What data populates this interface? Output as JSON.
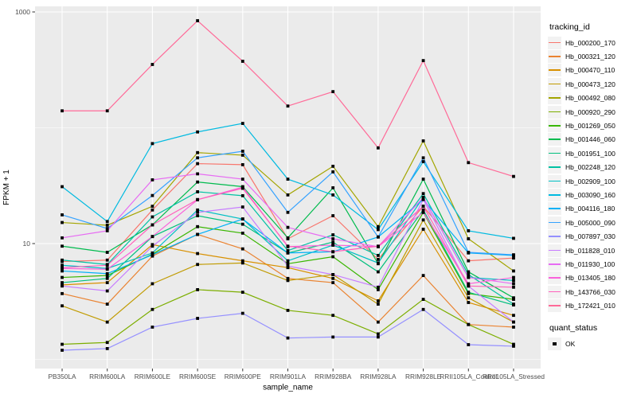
{
  "figure": {
    "background": "#FFFFFF",
    "panel_background": "#EBEBEB",
    "grid_color": "#FFFFFF",
    "tick_label_color": "#4D4D4D",
    "axis_title_color": "#000000",
    "point_color": "#000000"
  },
  "chart_data": {
    "type": "line",
    "title": "",
    "xlabel": "sample_name",
    "ylabel": "FPKM + 1",
    "y_scale": "log10",
    "y_tick_labels": [
      "10",
      "1000"
    ],
    "y_ticks": [
      10,
      1000
    ],
    "y_minor_gridlines": [
      1,
      100
    ],
    "ylim": [
      0.83,
      1120
    ],
    "grid": true,
    "legend_title": "tracking_id",
    "legend_position": "right",
    "point_marker": "black-square",
    "categories": [
      "PB350LA",
      "RRIM600LA",
      "RRIM600LE",
      "RRIM600SE",
      "RRIM600PE",
      "RRIM901LA",
      "RRIM928BA",
      "RRIM928LA",
      "RRIM928LE",
      "RRII105LA_Control",
      "RRII105LA_Stressed"
    ],
    "series": [
      {
        "name": "Hb_000200_170",
        "color": "#F8766D",
        "values": [
          7.0,
          7.2,
          19.5,
          49,
          48,
          11.0,
          17.4,
          7.3,
          21,
          7.1,
          7.5
        ]
      },
      {
        "name": "Hb_000321_120",
        "color": "#EA8331",
        "values": [
          3.7,
          3.0,
          7.8,
          12.0,
          9.0,
          5.0,
          4.6,
          2.1,
          5.3,
          2.0,
          1.9
        ]
      },
      {
        "name": "Hb_000470_110",
        "color": "#D89000",
        "values": [
          4.4,
          4.6,
          9.8,
          8.2,
          7.1,
          6.2,
          5.0,
          3.2,
          13.3,
          3.1,
          2.4
        ]
      },
      {
        "name": "Hb_000473_120",
        "color": "#C09B00",
        "values": [
          2.9,
          2.1,
          4.5,
          6.6,
          6.8,
          4.8,
          5.4,
          3.0,
          16.0,
          3.4,
          2.1
        ]
      },
      {
        "name": "Hb_000492_080",
        "color": "#A3A500",
        "values": [
          15.2,
          14.4,
          21.0,
          61.0,
          58.0,
          26.3,
          46.5,
          14.0,
          77.0,
          11.0,
          5.8
        ]
      },
      {
        "name": "Hb_000920_290",
        "color": "#7CAE00",
        "values": [
          1.35,
          1.4,
          2.7,
          4.0,
          3.8,
          2.65,
          2.4,
          1.66,
          3.3,
          2.0,
          1.35
        ]
      },
      {
        "name": "Hb_001269_050",
        "color": "#39B600",
        "values": [
          5.1,
          5.3,
          8.1,
          14.0,
          12.3,
          6.7,
          7.7,
          4.0,
          18.6,
          3.7,
          3.3
        ]
      },
      {
        "name": "Hb_001446_060",
        "color": "#00BB4E",
        "values": [
          9.5,
          8.4,
          14.5,
          34.0,
          31.0,
          11.2,
          30.3,
          6.7,
          36.0,
          5.7,
          3.4
        ]
      },
      {
        "name": "Hb_001951_100",
        "color": "#00BF7D",
        "values": [
          4.6,
          5.0,
          11.5,
          17.4,
          14.7,
          8.3,
          10.3,
          5.7,
          19.5,
          3.8,
          2.95
        ]
      },
      {
        "name": "Hb_002248_120",
        "color": "#00C1A3",
        "values": [
          7.2,
          6.6,
          17.0,
          28.0,
          25.9,
          8.7,
          11.9,
          7.9,
          27.0,
          5.4,
          3.0
        ]
      },
      {
        "name": "Hb_002909_100",
        "color": "#00BFC4",
        "values": [
          6.5,
          6.1,
          8.3,
          19.5,
          16.3,
          7.1,
          9.7,
          6.8,
          25.0,
          5.1,
          4.8
        ]
      },
      {
        "name": "Hb_003090_160",
        "color": "#00BAE0",
        "values": [
          31.0,
          15.5,
          73.0,
          92.0,
          109.0,
          36.0,
          26.3,
          13.2,
          51.0,
          12.9,
          11.1
        ]
      },
      {
        "name": "Hb_004116_180",
        "color": "#00B0F6",
        "values": [
          5.8,
          5.5,
          8.0,
          12.0,
          16.3,
          8.3,
          8.5,
          11.4,
          24.0,
          8.3,
          7.9
        ]
      },
      {
        "name": "Hb_005000_090",
        "color": "#35A2FF",
        "values": [
          17.7,
          13.5,
          26.0,
          55.0,
          62.7,
          18.6,
          41.6,
          11.4,
          55.0,
          8.4,
          8.0
        ]
      },
      {
        "name": "Hb_007897_030",
        "color": "#9590FF",
        "values": [
          1.2,
          1.24,
          1.9,
          2.26,
          2.5,
          1.53,
          1.56,
          1.56,
          2.7,
          1.34,
          1.3
        ]
      },
      {
        "name": "Hb_011828_010",
        "color": "#C77CFF",
        "values": [
          4.3,
          3.9,
          9.5,
          18.6,
          20.7,
          6.4,
          5.4,
          4.2,
          24.0,
          4.3,
          2.1
        ]
      },
      {
        "name": "Hb_011930_100",
        "color": "#E76BF3",
        "values": [
          11.2,
          12.9,
          35.5,
          40.0,
          36.0,
          13.8,
          11.0,
          9.4,
          25.0,
          5.1,
          4.5
        ]
      },
      {
        "name": "Hb_013405_180",
        "color": "#FA62DB",
        "values": [
          6.1,
          6.0,
          11.5,
          23.9,
          30.7,
          9.4,
          9.7,
          9.4,
          18.6,
          4.5,
          5.1
        ]
      },
      {
        "name": "Hb_143766_030",
        "color": "#FF62BC",
        "values": [
          6.2,
          6.5,
          14.5,
          24.0,
          30.0,
          9.5,
          8.5,
          9.5,
          21.0,
          4.3,
          4.2
        ]
      },
      {
        "name": "Hb_172421_010",
        "color": "#FF6A98",
        "values": [
          140,
          140,
          352,
          840,
          375,
          154,
          205,
          67,
          380,
          50,
          38
        ]
      }
    ],
    "quant_status": {
      "title": "quant_status",
      "label": "OK"
    }
  }
}
